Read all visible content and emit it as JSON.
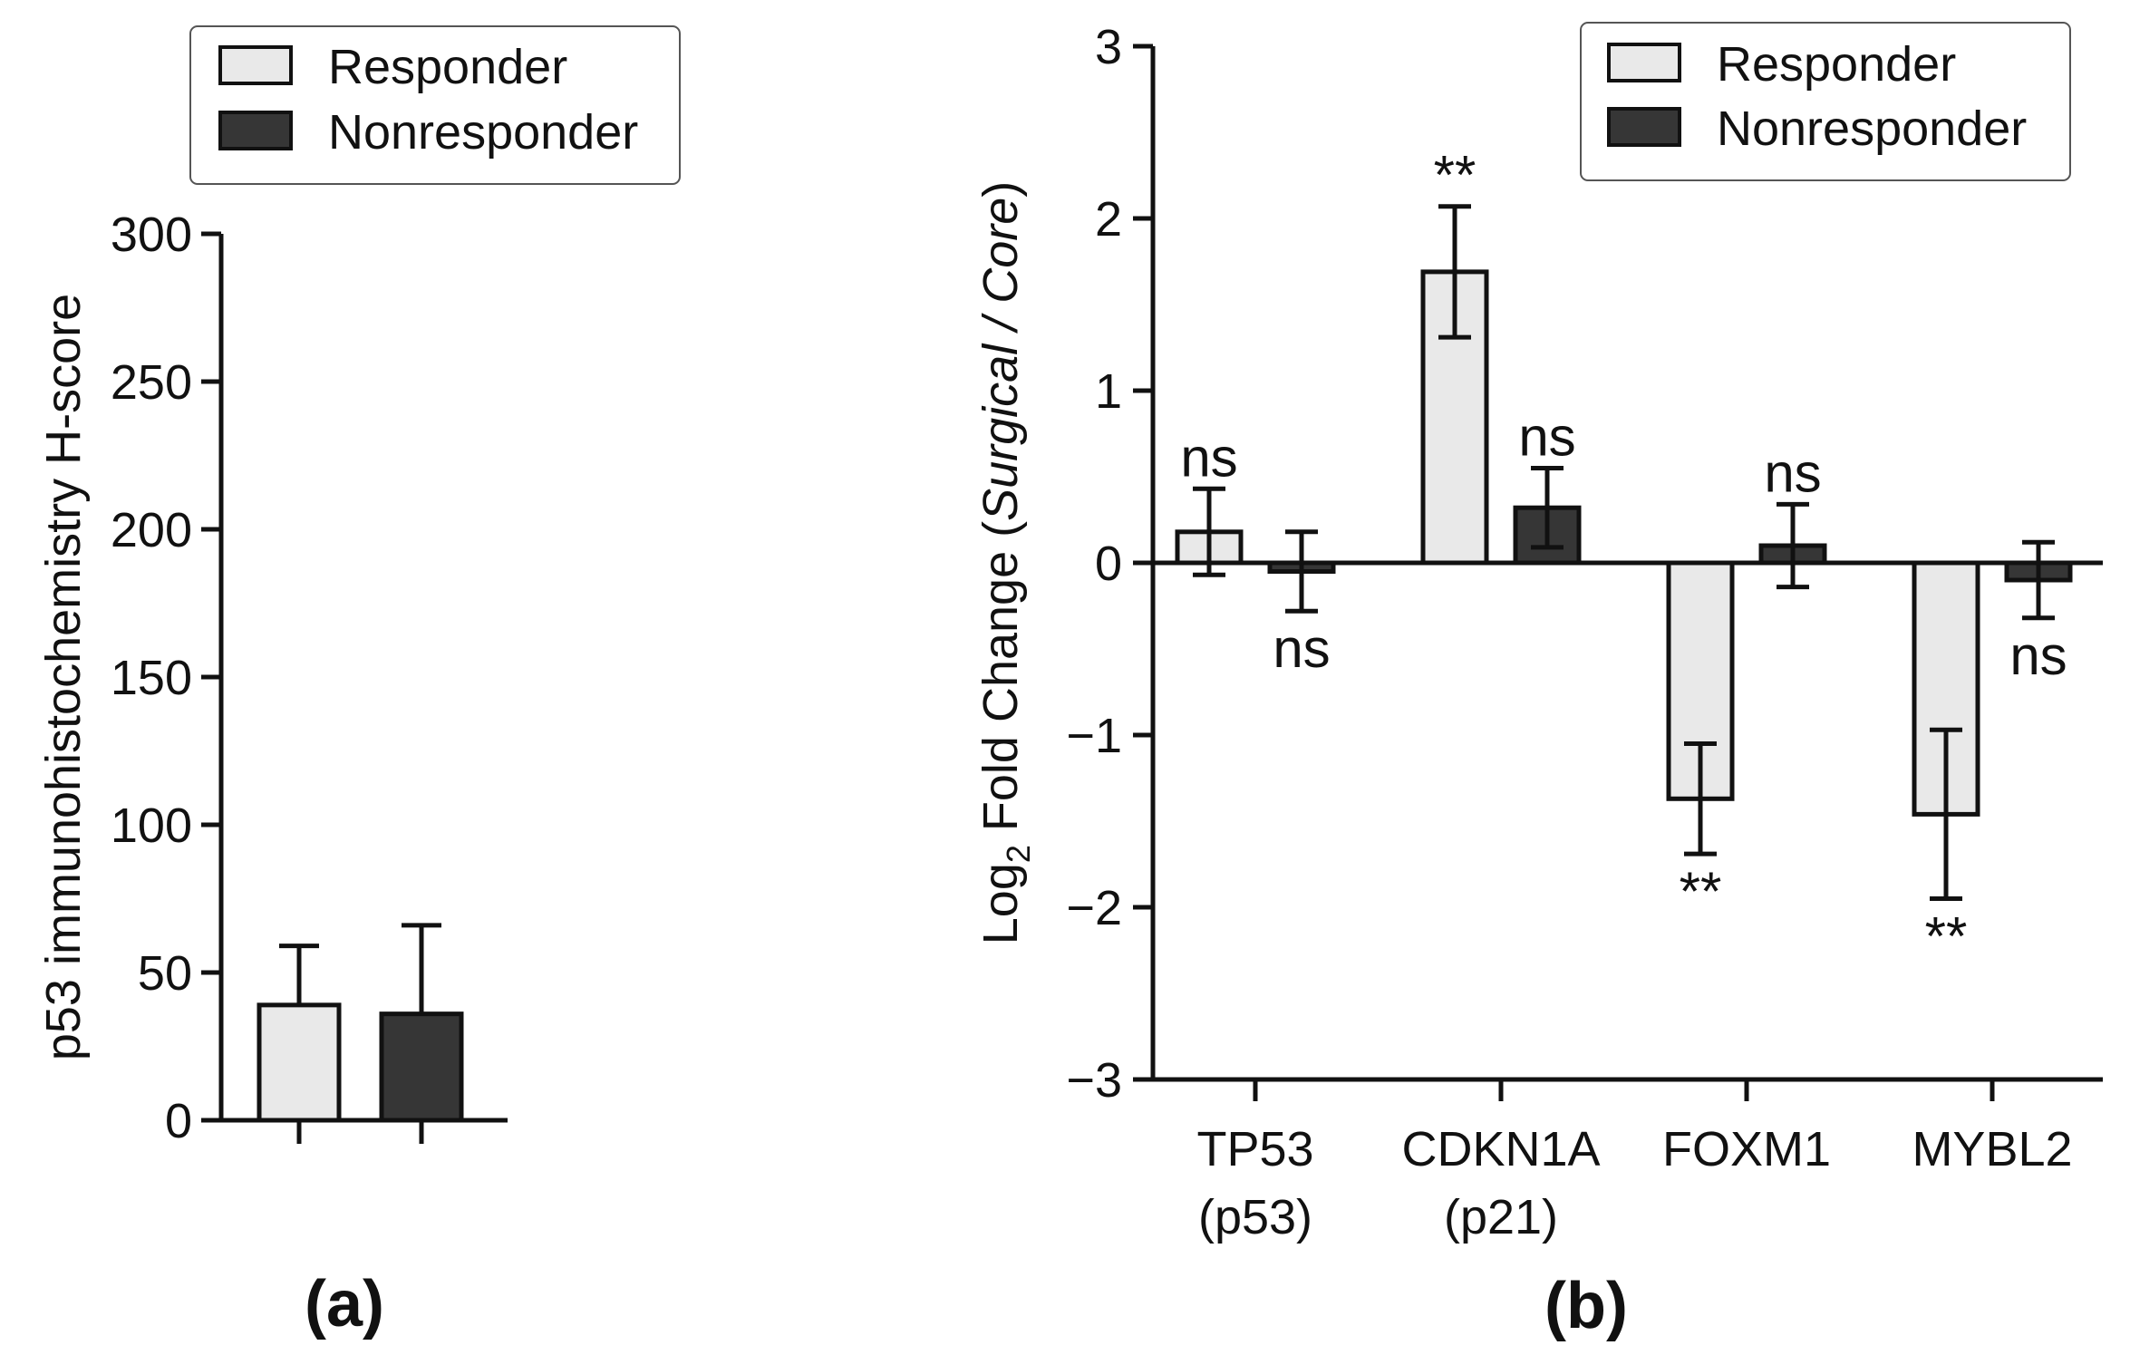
{
  "colors": {
    "responder": "#e9e9e9",
    "nonresponder": "#363636",
    "axis": "#111111"
  },
  "chart_data": [
    {
      "type": "bar",
      "panel_label": "(a)",
      "ylabel": "p53 immunohistochemistry H-score",
      "ylim": [
        0,
        300
      ],
      "yticks": [
        0,
        50,
        100,
        150,
        200,
        250,
        300
      ],
      "categories": [
        ""
      ],
      "legend": [
        "Responder",
        "Nonresponder"
      ],
      "legend_position": "top",
      "series": [
        {
          "name": "Responder",
          "values": [
            39
          ],
          "error": [
            20
          ]
        },
        {
          "name": "Nonresponder",
          "values": [
            36
          ],
          "error": [
            30
          ]
        }
      ]
    },
    {
      "type": "bar",
      "panel_label": "(b)",
      "ylabel_prefix": "Log",
      "ylabel_sub": "2",
      "ylabel_mid": " Fold Change (",
      "ylabel_italic": "Surgical / Core",
      "ylabel_end": ")",
      "ylim": [
        -3,
        3
      ],
      "yticks": [
        -3,
        -2,
        -1,
        0,
        1,
        2,
        3
      ],
      "ytick_labels": [
        "−3",
        "−2",
        "−1",
        "0",
        "1",
        "2",
        "3"
      ],
      "categories": [
        {
          "line1": "TP53",
          "line2": "(p53)"
        },
        {
          "line1": "CDKN1A",
          "line2": "(p21)"
        },
        {
          "line1": "FOXM1",
          "line2": ""
        },
        {
          "line1": "MYBL2",
          "line2": ""
        }
      ],
      "legend": [
        "Responder",
        "Nonresponder"
      ],
      "legend_position": "top-right",
      "series": [
        {
          "name": "Responder",
          "values": [
            0.18,
            1.69,
            -1.37,
            -1.46
          ],
          "error": [
            0.25,
            0.38,
            0.32,
            0.49
          ],
          "significance": [
            "ns",
            "**",
            "**",
            "**"
          ]
        },
        {
          "name": "Nonresponder",
          "values": [
            -0.05,
            0.32,
            0.1,
            -0.1
          ],
          "error": [
            0.23,
            0.23,
            0.24,
            0.22
          ],
          "significance": [
            "ns",
            "ns",
            "ns",
            "ns"
          ]
        }
      ]
    }
  ]
}
